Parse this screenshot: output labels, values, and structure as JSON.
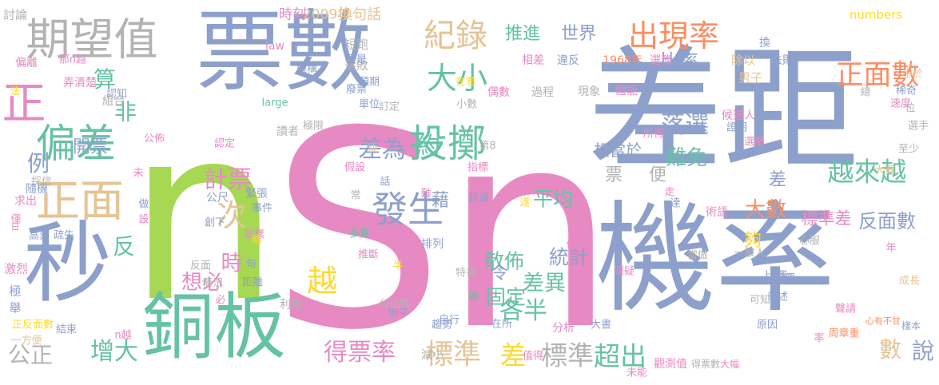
{
  "palette": {
    "blue": "#8da0cb",
    "green": "#66c2a5",
    "pink": "#e78ac3",
    "lime": "#a6d854",
    "gold": "#e5c494",
    "yellow": "#ffd92f",
    "orange": "#fc8d62",
    "gray": "#b3b3b3"
  },
  "words": [
    {
      "text": "差距",
      "color": "blue"
    },
    {
      "text": "n",
      "color": "lime"
    },
    {
      "text": "Sn",
      "color": "pink"
    },
    {
      "text": "機率",
      "color": "blue"
    },
    {
      "text": "票數",
      "color": "blue"
    },
    {
      "text": "秒",
      "color": "blue"
    },
    {
      "text": "銅板",
      "color": "green"
    },
    {
      "text": "期望值",
      "color": "gray"
    },
    {
      "text": "正",
      "color": "pink"
    },
    {
      "text": "偏差",
      "color": "green"
    },
    {
      "text": "正面",
      "color": "gold"
    },
    {
      "text": "投擲",
      "color": "green"
    },
    {
      "text": "發生",
      "color": "blue"
    },
    {
      "text": "大小",
      "color": "green"
    },
    {
      "text": "紀錄",
      "color": "gold"
    },
    {
      "text": "出現率",
      "color": "orange"
    },
    {
      "text": "正面數",
      "color": "orange"
    },
    {
      "text": "次",
      "color": "gold"
    },
    {
      "text": "越",
      "color": "yellow"
    },
    {
      "text": "越來越",
      "color": "green"
    },
    {
      "text": "標準",
      "color": "gold"
    },
    {
      "text": "標準",
      "color": "gray"
    },
    {
      "text": "差",
      "color": "yellow"
    },
    {
      "text": "得票率",
      "color": "pink"
    },
    {
      "text": "超出",
      "color": "green"
    },
    {
      "text": "增大",
      "color": "green"
    },
    {
      "text": "公正",
      "color": "gray"
    },
    {
      "text": "數",
      "color": "gold"
    },
    {
      "text": "說",
      "color": "blue"
    },
    {
      "text": "推進",
      "color": "green"
    },
    {
      "text": "世界",
      "color": "blue"
    },
    {
      "text": "比率",
      "color": "blue"
    },
    {
      "text": "差為",
      "color": "blue"
    },
    {
      "text": "約",
      "color": "green"
    },
    {
      "text": "計票",
      "color": "pink"
    },
    {
      "text": "平均",
      "color": "green"
    },
    {
      "text": "票",
      "color": "gray"
    },
    {
      "text": "便",
      "color": "gray"
    },
    {
      "text": "落選",
      "color": "blue"
    },
    {
      "text": "難免",
      "color": "green"
    },
    {
      "text": "大數",
      "color": "orange"
    },
    {
      "text": "相當於",
      "color": "blue"
    },
    {
      "text": "反面數",
      "color": "blue"
    },
    {
      "text": "標準差",
      "color": "pink"
    },
    {
      "text": "各半",
      "color": "green"
    },
    {
      "text": "差異",
      "color": "green"
    },
    {
      "text": "統計",
      "color": "blue"
    },
    {
      "text": "固定",
      "color": "green"
    },
    {
      "text": "散佈",
      "color": "green"
    },
    {
      "text": "想必",
      "color": "pink"
    },
    {
      "text": "時",
      "color": "pink"
    },
    {
      "text": "反",
      "color": "green"
    },
    {
      "text": "算",
      "color": "green"
    },
    {
      "text": "例",
      "color": "blue"
    },
    {
      "text": "開票",
      "color": "blue"
    },
    {
      "text": "藉",
      "color": "blue"
    },
    {
      "text": "令",
      "color": "blue"
    },
    {
      "text": "夠",
      "color": "yellow"
    },
    {
      "text": "差",
      "color": "blue"
    },
    {
      "text": "非",
      "color": "green"
    },
    {
      "text": "換句話",
      "color": "gold"
    },
    {
      "text": "2009年",
      "color": "gold"
    },
    {
      "text": "時刻",
      "color": "pink"
    },
    {
      "text": "討論",
      "color": "gray"
    },
    {
      "text": "numbers",
      "color": "yellow"
    },
    {
      "text": "1968年",
      "color": "orange"
    },
    {
      "text": "選務",
      "color": "pink"
    },
    {
      "text": "相差",
      "color": "pink"
    },
    {
      "text": "違反",
      "color": "blue"
    },
    {
      "text": "法則",
      "color": "blue"
    },
    {
      "text": "除以",
      "color": "gold"
    },
    {
      "text": "男子",
      "color": "gold"
    },
    {
      "text": "小於",
      "color": "gold"
    },
    {
      "text": "稀奇",
      "color": "blue"
    },
    {
      "text": "換",
      "color": "blue"
    },
    {
      "text": "短跑",
      "color": "gray"
    },
    {
      "text": "law",
      "color": "pink"
    },
    {
      "text": "落敗",
      "color": "gray"
    },
    {
      "text": "廢票",
      "color": "blue"
    },
    {
      "text": "便是",
      "color": "blue"
    },
    {
      "text": "預期",
      "color": "blue"
    },
    {
      "text": "單位",
      "color": "blue"
    },
    {
      "text": "訂定",
      "color": "gray"
    },
    {
      "text": "小數",
      "color": "gray"
    },
    {
      "text": "偶數",
      "color": "pink"
    },
    {
      "text": "過程",
      "color": "gray"
    },
    {
      "text": "現象",
      "color": "gray"
    },
    {
      "text": "體能",
      "color": "pink"
    },
    {
      "text": "候選人",
      "color": "pink"
    },
    {
      "text": "證明",
      "color": "blue"
    },
    {
      "text": "大賽",
      "color": "gold"
    },
    {
      "text": "選舉",
      "color": "pink"
    },
    {
      "text": "速度",
      "color": "pink"
    },
    {
      "text": "選手",
      "color": "gray"
    },
    {
      "text": "至少",
      "color": "gray"
    },
    {
      "text": "偏離",
      "color": "pink"
    },
    {
      "text": "弄清楚",
      "color": "pink"
    },
    {
      "text": "那n越",
      "color": "pink"
    },
    {
      "text": "機構",
      "color": "blue"
    },
    {
      "text": "認知",
      "color": "blue"
    },
    {
      "text": "組合",
      "color": "gray"
    },
    {
      "text": "large",
      "color": "green"
    },
    {
      "text": "認定",
      "color": "pink"
    },
    {
      "text": "讀者",
      "color": "gray"
    },
    {
      "text": "極限",
      "color": "gray"
    },
    {
      "text": "第8",
      "color": "gray"
    },
    {
      "text": "所得",
      "color": "pink"
    },
    {
      "text": "公佈",
      "color": "pink"
    },
    {
      "text": "採信",
      "color": "gray"
    },
    {
      "text": "隨機",
      "color": "blue"
    },
    {
      "text": "求出",
      "color": "pink"
    },
    {
      "text": "高票",
      "color": "blue"
    },
    {
      "text": "疏失",
      "color": "blue"
    },
    {
      "text": "公尺",
      "color": "blue"
    },
    {
      "text": "緊張",
      "color": "blue"
    },
    {
      "text": "假設",
      "color": "pink"
    },
    {
      "text": "指標",
      "color": "pink"
    },
    {
      "text": "超過",
      "color": "blue"
    },
    {
      "text": "創下",
      "color": "blue"
    },
    {
      "text": "事件",
      "color": "blue"
    },
    {
      "text": "術語",
      "color": "pink"
    },
    {
      "text": "一般人",
      "color": "gray"
    },
    {
      "text": "比賽",
      "color": "blue"
    },
    {
      "text": "投票",
      "color": "blue"
    },
    {
      "text": "前述",
      "color": "blue"
    },
    {
      "text": "成長",
      "color": "gold"
    },
    {
      "text": "當做",
      "color": "gray"
    },
    {
      "text": "心服",
      "color": "gray"
    },
    {
      "text": "反面",
      "color": "gray"
    },
    {
      "text": "情況",
      "color": "gray"
    },
    {
      "text": "多寡",
      "color": "green"
    },
    {
      "text": "門檻",
      "color": "pink"
    },
    {
      "text": "推斷",
      "color": "pink"
    },
    {
      "text": "排列",
      "color": "blue"
    },
    {
      "text": "特書",
      "color": "gray"
    },
    {
      "text": "距離",
      "color": "blue"
    },
    {
      "text": "懷疑",
      "color": "pink"
    },
    {
      "text": "可知",
      "color": "gray"
    },
    {
      "text": "聲請",
      "color": "pink"
    },
    {
      "text": "心有不甘",
      "color": "orange"
    },
    {
      "text": "樣本",
      "color": "blue"
    },
    {
      "text": "利用",
      "color": "gray"
    },
    {
      "text": "公正性",
      "color": "gray"
    },
    {
      "text": "例子",
      "color": "blue"
    },
    {
      "text": "趨勢",
      "color": "blue"
    },
    {
      "text": "自行",
      "color": "blue"
    },
    {
      "text": "在所",
      "color": "blue"
    },
    {
      "text": "分析",
      "color": "pink"
    },
    {
      "text": "大書",
      "color": "blue"
    },
    {
      "text": "原因",
      "color": "blue"
    },
    {
      "text": "周章重",
      "color": "orange"
    },
    {
      "text": "正反面數",
      "color": "yellow"
    },
    {
      "text": "一方便",
      "color": "gold"
    },
    {
      "text": "結束",
      "color": "blue"
    },
    {
      "text": "n越",
      "color": "pink"
    },
    {
      "text": "減小",
      "color": "gray"
    },
    {
      "text": "值得",
      "color": "pink"
    },
    {
      "text": "未能",
      "color": "pink"
    },
    {
      "text": "觀測值",
      "color": "pink"
    },
    {
      "text": "得票數",
      "color": "gray"
    },
    {
      "text": "大幅",
      "color": "pink"
    },
    {
      "text": "激烈",
      "color": "pink"
    },
    {
      "text": "極",
      "color": "blue"
    },
    {
      "text": "舉",
      "color": "blue"
    },
    {
      "text": "法",
      "color": "yellow"
    },
    {
      "text": "做",
      "color": "blue"
    },
    {
      "text": "設",
      "color": "pink"
    },
    {
      "text": "僅",
      "color": "pink"
    },
    {
      "text": "日",
      "color": "pink"
    },
    {
      "text": "取樣",
      "color": "pink"
    },
    {
      "text": "略",
      "color": "yellow"
    },
    {
      "text": "句",
      "color": "blue"
    },
    {
      "text": "必",
      "color": "pink"
    },
    {
      "text": "半",
      "color": "yellow"
    },
    {
      "text": "快",
      "color": "gold"
    },
    {
      "text": "話",
      "color": "blue"
    },
    {
      "text": "常",
      "color": "gray"
    },
    {
      "text": "難",
      "color": "pink"
    },
    {
      "text": "在意",
      "color": "yellow"
    },
    {
      "text": "未",
      "color": "pink"
    },
    {
      "text": "遂",
      "color": "yellow"
    },
    {
      "text": "低",
      "color": "pink"
    },
    {
      "text": "遍",
      "color": "green"
    },
    {
      "text": "走",
      "color": "pink"
    },
    {
      "text": "達",
      "color": "blue"
    },
    {
      "text": "總",
      "color": "gray"
    },
    {
      "text": "位",
      "color": "gray"
    },
    {
      "text": "率",
      "color": "pink"
    },
    {
      "text": "年",
      "color": "pink"
    },
    {
      "text": "值",
      "color": "gray"
    }
  ]
}
